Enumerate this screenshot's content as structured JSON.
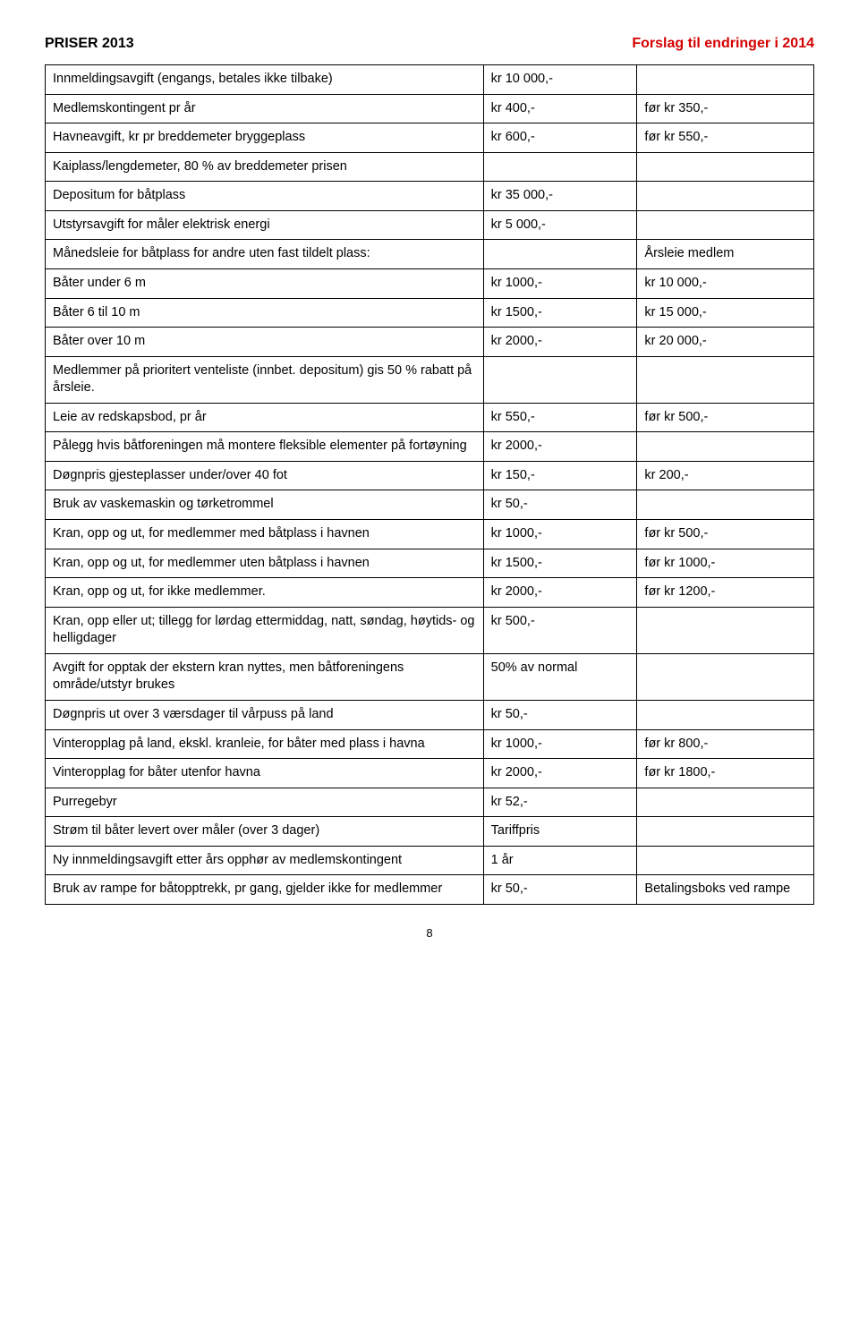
{
  "header": {
    "left": "PRISER 2013",
    "right": "Forslag til endringer i 2014"
  },
  "rows": [
    {
      "c1": "Innmeldingsavgift (engangs, betales ikke tilbake)",
      "c2": "kr 10 000,-",
      "c3": ""
    },
    {
      "c1": "Medlemskontingent pr år",
      "c2": "kr 400,-",
      "c3": "før kr 350,-"
    },
    {
      "c1": "Havneavgift, kr pr breddemeter bryggeplass",
      "c2": "kr 600,-",
      "c3": "før kr 550,-"
    },
    {
      "c1": "Kaiplass/lengdemeter, 80 % av breddemeter prisen",
      "c2": "",
      "c3": ""
    },
    {
      "c1": "Depositum for båtplass",
      "c2": "kr 35 000,-",
      "c3": ""
    },
    {
      "c1": "Utstyrsavgift for måler elektrisk energi",
      "c2": "kr 5 000,-",
      "c3": ""
    },
    {
      "c1": "Månedsleie for båtplass for andre uten fast tildelt plass:",
      "c2": "",
      "c3": "Årsleie medlem"
    },
    {
      "c1": "Båter under 6 m",
      "c2": "kr 1000,-",
      "c3": "kr 10 000,-"
    },
    {
      "c1": "Båter 6 til 10 m",
      "c2": "kr 1500,-",
      "c3": "kr 15 000,-"
    },
    {
      "c1": "Båter over 10 m",
      "c2": "kr 2000,-",
      "c3": "kr 20 000,-"
    },
    {
      "c1": "Medlemmer på prioritert venteliste (innbet. depositum) gis 50 % rabatt på årsleie.",
      "c2": "",
      "c3": ""
    },
    {
      "c1": "Leie av redskapsbod, pr år",
      "c2": "kr 550,-",
      "c3": "før kr 500,-"
    },
    {
      "c1": "Pålegg hvis båtforeningen må montere fleksible elementer på fortøyning",
      "c2": "kr 2000,-",
      "c3": ""
    },
    {
      "c1": "Døgnpris gjesteplasser under/over 40 fot",
      "c2": "kr 150,-",
      "c3": "kr 200,-"
    },
    {
      "c1": "Bruk av vaskemaskin og tørketrommel",
      "c2": "kr 50,-",
      "c3": ""
    },
    {
      "c1": "Kran, opp og ut, for medlemmer med båtplass i havnen",
      "c2": "kr 1000,-",
      "c3": "før kr 500,-"
    },
    {
      "c1": "Kran, opp og ut, for medlemmer uten båtplass i havnen",
      "c2": "kr 1500,-",
      "c3": "før kr 1000,-"
    },
    {
      "c1": "Kran, opp og ut, for ikke medlemmer.",
      "c2": "kr 2000,-",
      "c3": "før kr 1200,-"
    },
    {
      "c1": "Kran, opp eller ut; tillegg for lørdag ettermiddag, natt, søndag, høytids- og helligdager",
      "c2": "kr 500,-",
      "c3": ""
    },
    {
      "c1": "Avgift for opptak der ekstern kran nyttes, men båtforeningens område/utstyr brukes",
      "c2": "50% av normal",
      "c3": ""
    },
    {
      "c1": "Døgnpris ut over 3 værsdager til vårpuss på land",
      "c2": "kr 50,-",
      "c3": ""
    },
    {
      "c1": "Vinteropplag på land, ekskl. kranleie, for båter med plass i havna",
      "c2": "kr 1000,-",
      "c3": "før kr 800,-"
    },
    {
      "c1": "Vinteropplag for båter utenfor havna",
      "c2": "kr 2000,-",
      "c3": "før kr 1800,-"
    },
    {
      "c1": "Purregebyr",
      "c2": "kr 52,-",
      "c3": ""
    },
    {
      "c1": "Strøm til båter levert over måler (over 3 dager)",
      "c2": "Tariffpris",
      "c3": ""
    },
    {
      "c1": "Ny innmeldingsavgift etter års opphør av medlemskontingent",
      "c2": "1 år",
      "c3": ""
    },
    {
      "c1": "Bruk av rampe for båtopptrekk, pr gang, gjelder ikke for medlemmer",
      "c2": "kr 50,-",
      "c3": "Betalingsboks ved rampe"
    }
  ],
  "pageNumber": "8"
}
